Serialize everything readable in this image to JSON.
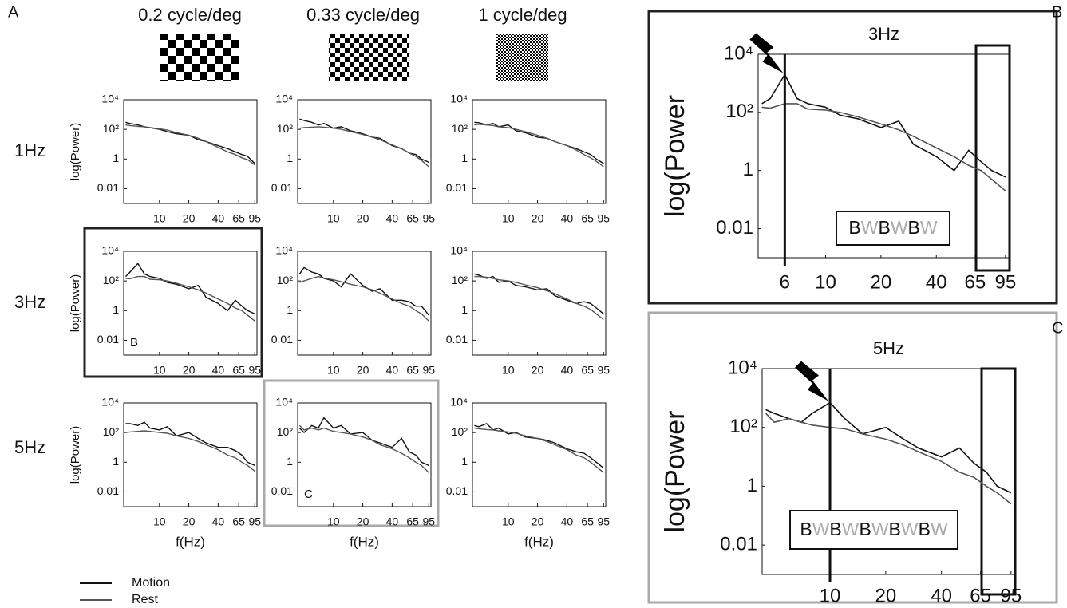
{
  "figure": {
    "letters": [
      "A",
      "B",
      "C"
    ],
    "columns": [
      "0.2 cycle/deg",
      "0.33 cycle/deg",
      "1 cycle/deg"
    ],
    "rows": [
      "1Hz",
      "3Hz",
      "5Hz"
    ]
  },
  "chart_data": [
    {
      "type": "line",
      "ylabel": "log(Power)",
      "xlog": true,
      "ylog": true,
      "xlim": [
        4.3,
        100
      ],
      "ylim": [
        0.001,
        10000
      ],
      "xticks": [
        10,
        20,
        40,
        65,
        95
      ],
      "yticks": [
        0.01,
        1,
        {
          "value": 100,
          "label": "10²"
        },
        {
          "value": 10000,
          "label": "10⁴"
        }
      ],
      "x": [
        4.5,
        5,
        6,
        7,
        8,
        10,
        12,
        15,
        20,
        25,
        30,
        40,
        50,
        60,
        70,
        80,
        95
      ],
      "series": [
        {
          "name": "Motion",
          "color": "#111111",
          "values": [
            300,
            250,
            200,
            150,
            130,
            100,
            70,
            50,
            40,
            20,
            15,
            8,
            5,
            3,
            2,
            1.5,
            0.5
          ]
        },
        {
          "name": "Rest",
          "color": "#555555",
          "values": [
            200,
            180,
            160,
            150,
            130,
            110,
            90,
            60,
            40,
            25,
            15,
            6,
            3,
            2,
            1.2,
            0.9,
            0.4
          ]
        }
      ]
    },
    {
      "type": "line",
      "xlog": true,
      "ylog": true,
      "xlim": [
        4.3,
        100
      ],
      "ylim": [
        0.001,
        10000
      ],
      "xticks": [
        10,
        20,
        40,
        65,
        95
      ],
      "yticks": [
        0.01,
        1,
        {
          "value": 100,
          "label": "10²"
        },
        {
          "value": 10000,
          "label": "10⁴"
        }
      ],
      "x": [
        4.5,
        5,
        6,
        7,
        8,
        10,
        12,
        15,
        20,
        25,
        30,
        40,
        50,
        60,
        70,
        80,
        95
      ],
      "series": [
        {
          "name": "Motion",
          "color": "#111111",
          "values": [
            500,
            400,
            300,
            200,
            250,
            120,
            150,
            80,
            50,
            30,
            25,
            8,
            5,
            2.5,
            2,
            1,
            0.6
          ]
        },
        {
          "name": "Rest",
          "color": "#555555",
          "values": [
            120,
            130,
            140,
            150,
            140,
            120,
            100,
            70,
            45,
            30,
            20,
            9,
            5,
            2.5,
            1.5,
            0.8,
            0.3
          ]
        }
      ]
    },
    {
      "type": "line",
      "xlog": true,
      "ylog": true,
      "xlim": [
        4.3,
        100
      ],
      "ylim": [
        0.001,
        10000
      ],
      "xticks": [
        10,
        20,
        40,
        65,
        95
      ],
      "yticks": [
        0.01,
        1,
        {
          "value": 100,
          "label": "10²"
        },
        {
          "value": 10000,
          "label": "10⁴"
        }
      ],
      "x": [
        4.5,
        5,
        6,
        7,
        8,
        10,
        12,
        15,
        20,
        25,
        30,
        40,
        50,
        60,
        70,
        80,
        95
      ],
      "series": [
        {
          "name": "Motion",
          "color": "#111111",
          "values": [
            300,
            280,
            200,
            250,
            150,
            200,
            80,
            60,
            30,
            25,
            15,
            8,
            5,
            3,
            2,
            1,
            0.5
          ]
        },
        {
          "name": "Rest",
          "color": "#555555",
          "values": [
            200,
            220,
            200,
            180,
            150,
            130,
            100,
            70,
            40,
            25,
            15,
            8,
            4,
            2,
            1.2,
            0.7,
            0.3
          ]
        }
      ]
    },
    {
      "type": "line",
      "ylabel": "log(Power)",
      "inset_label": "B",
      "xlog": true,
      "ylog": true,
      "xlim": [
        4.3,
        100
      ],
      "ylim": [
        0.001,
        10000
      ],
      "xticks": [
        10,
        20,
        40,
        65,
        95
      ],
      "yticks": [
        0.01,
        1,
        {
          "value": 100,
          "label": "10²"
        },
        {
          "value": 10000,
          "label": "10⁴"
        }
      ],
      "x": [
        4.5,
        5,
        6,
        7,
        8,
        10,
        12,
        15,
        20,
        25,
        30,
        40,
        50,
        60,
        70,
        80,
        95
      ],
      "series": [
        {
          "name": "Motion",
          "color": "#111111",
          "values": [
            200,
            400,
            1500,
            300,
            200,
            150,
            80,
            60,
            30,
            50,
            8,
            3,
            1,
            5,
            2,
            1,
            0.6
          ]
        },
        {
          "name": "Rest",
          "color": "#555555",
          "values": [
            150,
            140,
            200,
            200,
            130,
            120,
            100,
            70,
            40,
            25,
            15,
            6,
            3,
            1.5,
            1,
            0.5,
            0.2
          ]
        }
      ]
    },
    {
      "type": "line",
      "xlog": true,
      "ylog": true,
      "xlim": [
        4.3,
        100
      ],
      "ylim": [
        0.001,
        10000
      ],
      "xticks": [
        10,
        20,
        40,
        65,
        95
      ],
      "yticks": [
        0.01,
        1,
        {
          "value": 100,
          "label": "10²"
        },
        {
          "value": 10000,
          "label": "10⁴"
        }
      ],
      "x": [
        4.5,
        5,
        6,
        7,
        8,
        10,
        12,
        15,
        20,
        25,
        30,
        40,
        50,
        60,
        70,
        80,
        95
      ],
      "series": [
        {
          "name": "Motion",
          "color": "#111111",
          "values": [
            300,
            800,
            400,
            300,
            150,
            100,
            40,
            300,
            50,
            20,
            30,
            5,
            5,
            4,
            2,
            2,
            0.5
          ]
        },
        {
          "name": "Rest",
          "color": "#555555",
          "values": [
            80,
            100,
            150,
            200,
            160,
            120,
            90,
            60,
            40,
            25,
            15,
            6,
            3,
            2,
            1,
            0.6,
            0.2
          ]
        }
      ]
    },
    {
      "type": "line",
      "xlog": true,
      "ylog": true,
      "xlim": [
        4.3,
        100
      ],
      "ylim": [
        0.001,
        10000
      ],
      "xticks": [
        10,
        20,
        40,
        65,
        95
      ],
      "yticks": [
        0.01,
        1,
        {
          "value": 100,
          "label": "10²"
        },
        {
          "value": 10000,
          "label": "10⁴"
        }
      ],
      "x": [
        4.5,
        5,
        6,
        7,
        8,
        10,
        12,
        15,
        20,
        25,
        30,
        40,
        50,
        60,
        70,
        80,
        95
      ],
      "series": [
        {
          "name": "Motion",
          "color": "#111111",
          "values": [
            300,
            250,
            150,
            200,
            80,
            100,
            50,
            40,
            25,
            30,
            10,
            5,
            3,
            4,
            3,
            1.5,
            0.6
          ]
        },
        {
          "name": "Rest",
          "color": "#555555",
          "values": [
            200,
            200,
            180,
            150,
            120,
            100,
            80,
            55,
            35,
            22,
            14,
            6,
            3,
            2,
            1.2,
            0.6,
            0.25
          ]
        }
      ]
    },
    {
      "type": "line",
      "ylabel": "log(Power)",
      "xlabel": "f(Hz)",
      "xlog": true,
      "ylog": true,
      "xlim": [
        4.3,
        100
      ],
      "ylim": [
        0.001,
        10000
      ],
      "xticks": [
        10,
        20,
        40,
        65,
        95
      ],
      "yticks": [
        0.01,
        1,
        {
          "value": 100,
          "label": "10²"
        },
        {
          "value": 10000,
          "label": "10⁴"
        }
      ],
      "x": [
        4.5,
        5,
        6,
        7,
        8,
        10,
        12,
        15,
        20,
        25,
        30,
        40,
        50,
        60,
        70,
        80,
        95
      ],
      "series": [
        {
          "name": "Motion",
          "color": "#111111",
          "values": [
            400,
            400,
            300,
            500,
            200,
            150,
            250,
            60,
            100,
            40,
            20,
            10,
            10,
            6,
            3,
            1,
            0.6
          ]
        },
        {
          "name": "Rest",
          "color": "#555555",
          "values": [
            100,
            110,
            120,
            130,
            120,
            100,
            90,
            60,
            40,
            25,
            15,
            7,
            3,
            2,
            1,
            0.6,
            0.25
          ]
        }
      ]
    },
    {
      "type": "line",
      "xlabel": "f(Hz)",
      "inset_label": "C",
      "xlog": true,
      "ylog": true,
      "xlim": [
        4.3,
        100
      ],
      "ylim": [
        0.001,
        10000
      ],
      "xticks": [
        10,
        20,
        40,
        65,
        95
      ],
      "yticks": [
        0.01,
        1,
        {
          "value": 100,
          "label": "10²"
        },
        {
          "value": 10000,
          "label": "10⁴"
        }
      ],
      "x": [
        4.5,
        5,
        6,
        7,
        8,
        10,
        12,
        15,
        20,
        25,
        30,
        40,
        50,
        60,
        70,
        80,
        95
      ],
      "series": [
        {
          "name": "Motion",
          "color": "#111111",
          "values": [
            200,
            100,
            300,
            200,
            1000,
            200,
            300,
            80,
            100,
            30,
            20,
            10,
            40,
            5,
            3,
            1,
            0.6
          ]
        },
        {
          "name": "Rest",
          "color": "#555555",
          "values": [
            300,
            150,
            200,
            150,
            200,
            120,
            100,
            80,
            50,
            30,
            15,
            8,
            4,
            2,
            1,
            0.6,
            0.2
          ]
        }
      ]
    },
    {
      "type": "line",
      "xlabel": "f(Hz)",
      "xlog": true,
      "ylog": true,
      "xlim": [
        4.3,
        100
      ],
      "ylim": [
        0.001,
        10000
      ],
      "xticks": [
        10,
        20,
        40,
        65,
        95
      ],
      "yticks": [
        0.01,
        1,
        {
          "value": 100,
          "label": "10²"
        },
        {
          "value": 10000,
          "label": "10⁴"
        }
      ],
      "x": [
        4.5,
        5,
        6,
        7,
        8,
        10,
        12,
        15,
        20,
        25,
        30,
        40,
        50,
        60,
        70,
        80,
        95
      ],
      "series": [
        {
          "name": "Motion",
          "color": "#111111",
          "values": [
            300,
            250,
            400,
            150,
            200,
            80,
            100,
            50,
            40,
            30,
            20,
            8,
            5,
            4,
            2,
            1,
            0.4
          ]
        },
        {
          "name": "Rest",
          "color": "#555555",
          "values": [
            200,
            180,
            160,
            150,
            130,
            110,
            90,
            60,
            40,
            25,
            15,
            7,
            3,
            2,
            1,
            0.5,
            0.2
          ]
        }
      ]
    },
    {
      "type": "line",
      "title": "3Hz",
      "ylabel": "log(Power",
      "pattern": "BWBWBW",
      "vline": 6,
      "xlog": true,
      "ylog": true,
      "xlim": [
        4.3,
        100
      ],
      "ylim": [
        0.001,
        10000
      ],
      "xticks": [
        6,
        10,
        20,
        40,
        65,
        95
      ],
      "yticks": [
        0.01,
        1,
        {
          "value": 100,
          "label": "10²"
        },
        {
          "value": 10000,
          "label": "10⁴"
        }
      ],
      "x": [
        4.5,
        5,
        6,
        7,
        8,
        10,
        12,
        15,
        20,
        25,
        30,
        40,
        50,
        60,
        70,
        80,
        95
      ],
      "series": [
        {
          "name": "Motion",
          "color": "#111111",
          "values": [
            200,
            300,
            2000,
            300,
            200,
            150,
            80,
            60,
            30,
            50,
            8,
            3,
            1,
            5,
            2,
            1,
            0.6
          ]
        },
        {
          "name": "Rest",
          "color": "#555555",
          "values": [
            150,
            140,
            200,
            200,
            130,
            120,
            100,
            70,
            40,
            25,
            15,
            6,
            3,
            1.5,
            1,
            0.5,
            0.2
          ]
        }
      ]
    },
    {
      "type": "line",
      "title": "5Hz",
      "ylabel": "log(Power",
      "pattern": "BWBWBWBWBW",
      "vline": 10,
      "xlog": true,
      "ylog": true,
      "xlim": [
        4.3,
        100
      ],
      "ylim": [
        0.001,
        10000
      ],
      "xticks": [
        10,
        20,
        40,
        65,
        95
      ],
      "yticks": [
        0.01,
        1,
        {
          "value": 100,
          "label": "10²"
        },
        {
          "value": 10000,
          "label": "10⁴"
        }
      ],
      "x": [
        4.5,
        5,
        6,
        7,
        8,
        10,
        12,
        15,
        20,
        25,
        30,
        40,
        50,
        60,
        70,
        80,
        95
      ],
      "series": [
        {
          "name": "Motion",
          "color": "#111111",
          "values": [
            400,
            300,
            200,
            150,
            300,
            700,
            200,
            60,
            100,
            40,
            20,
            10,
            20,
            6,
            3,
            1,
            0.6
          ]
        },
        {
          "name": "Rest",
          "color": "#555555",
          "values": [
            300,
            150,
            200,
            150,
            120,
            100,
            90,
            60,
            40,
            25,
            15,
            7,
            3,
            2,
            1,
            0.6,
            0.25
          ]
        }
      ]
    }
  ]
}
